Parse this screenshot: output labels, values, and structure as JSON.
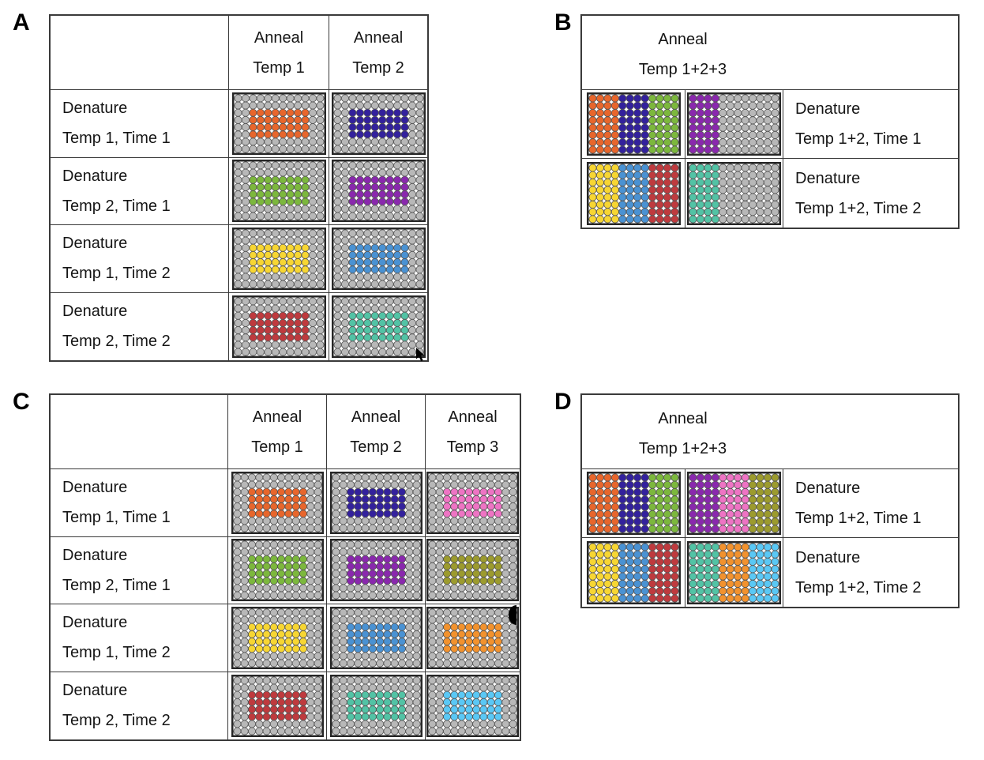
{
  "figure_title": "PCR plate layout diagram: anneal temperature vs denature temperature/time conditions",
  "colors": {
    "gray_well": "#b8b8b8",
    "well_stroke": "#555555",
    "plate_border": "#262626",
    "table_border": "#3a3a3a",
    "text": "#151515",
    "orange": "#e8662c",
    "indigo": "#33219d",
    "green": "#7cb83d",
    "purple": "#8a28ae",
    "yellow": "#f7d633",
    "blue": "#4a92d3",
    "red": "#bf3a3e",
    "teal": "#52c3a5",
    "pink": "#ee74c4",
    "olive": "#9c9b2e",
    "orange2": "#f2922e",
    "sky": "#5ac8f5"
  },
  "plate_grid": {
    "cols": 12,
    "rows": 8,
    "block": {
      "col_start": 2,
      "col_end": 9,
      "row_start": 2,
      "row_end": 5
    },
    "band_width_cols": 4
  },
  "panels": [
    {
      "label": "A",
      "kind": "matrix",
      "col_headers": [
        [
          "Anneal",
          "Temp 1"
        ],
        [
          "Anneal",
          "Temp 2"
        ]
      ],
      "rows": [
        {
          "label": [
            "Denature",
            "Temp 1, Time 1"
          ],
          "plates": [
            {
              "type": "block",
              "color": "orange"
            },
            {
              "type": "block",
              "color": "indigo"
            }
          ]
        },
        {
          "label": [
            "Denature",
            "Temp 2, Time 1"
          ],
          "plates": [
            {
              "type": "block",
              "color": "green"
            },
            {
              "type": "block",
              "color": "purple"
            }
          ]
        },
        {
          "label": [
            "Denature",
            "Temp 1, Time 2"
          ],
          "plates": [
            {
              "type": "block",
              "color": "yellow"
            },
            {
              "type": "block",
              "color": "blue"
            }
          ]
        },
        {
          "label": [
            "Denature",
            "Temp 2, Time 2"
          ],
          "plates": [
            {
              "type": "block",
              "color": "red"
            },
            {
              "type": "block",
              "color": "teal"
            }
          ]
        }
      ]
    },
    {
      "label": "B",
      "kind": "combined",
      "header": [
        "Anneal",
        "Temp 1+2+3"
      ],
      "rows": [
        {
          "plates": [
            {
              "type": "bands",
              "colors": [
                "orange",
                "indigo",
                "green"
              ]
            },
            {
              "type": "bands",
              "colors": [
                "purple",
                null,
                null
              ]
            }
          ],
          "label": [
            "Denature",
            "Temp 1+2, Time 1"
          ]
        },
        {
          "plates": [
            {
              "type": "bands",
              "colors": [
                "yellow",
                "blue",
                "red"
              ]
            },
            {
              "type": "bands",
              "colors": [
                "teal",
                null,
                null
              ]
            }
          ],
          "label": [
            "Denature",
            "Temp 1+2, Time 2"
          ]
        }
      ]
    },
    {
      "label": "C",
      "kind": "matrix",
      "col_headers": [
        [
          "Anneal",
          "Temp 1"
        ],
        [
          "Anneal",
          "Temp 2"
        ],
        [
          "Anneal",
          "Temp 3"
        ]
      ],
      "rows": [
        {
          "label": [
            "Denature",
            "Temp 1, Time 1"
          ],
          "plates": [
            {
              "type": "block",
              "color": "orange"
            },
            {
              "type": "block",
              "color": "indigo"
            },
            {
              "type": "block",
              "color": "pink"
            }
          ]
        },
        {
          "label": [
            "Denature",
            "Temp 2, Time 1"
          ],
          "plates": [
            {
              "type": "block",
              "color": "green"
            },
            {
              "type": "block",
              "color": "purple"
            },
            {
              "type": "block",
              "color": "olive"
            }
          ]
        },
        {
          "label": [
            "Denature",
            "Temp 1, Time 2"
          ],
          "plates": [
            {
              "type": "block",
              "color": "yellow"
            },
            {
              "type": "block",
              "color": "blue"
            },
            {
              "type": "block",
              "color": "orange2"
            }
          ]
        },
        {
          "label": [
            "Denature",
            "Temp 2, Time 2"
          ],
          "plates": [
            {
              "type": "block",
              "color": "red"
            },
            {
              "type": "block",
              "color": "teal"
            },
            {
              "type": "block",
              "color": "sky"
            }
          ]
        }
      ]
    },
    {
      "label": "D",
      "kind": "combined",
      "header": [
        "Anneal",
        "Temp 1+2+3"
      ],
      "rows": [
        {
          "plates": [
            {
              "type": "bands",
              "colors": [
                "orange",
                "indigo",
                "green"
              ]
            },
            {
              "type": "bands",
              "colors": [
                "purple",
                "pink",
                "olive"
              ]
            }
          ],
          "label": [
            "Denature",
            "Temp 1+2, Time 1"
          ]
        },
        {
          "plates": [
            {
              "type": "bands",
              "colors": [
                "yellow",
                "blue",
                "red"
              ]
            },
            {
              "type": "bands",
              "colors": [
                "teal",
                "orange2",
                "sky"
              ]
            }
          ],
          "label": [
            "Denature",
            "Temp 1+2, Time 2"
          ]
        }
      ]
    }
  ],
  "artifacts": {
    "cursor_icon": "mouse-cursor",
    "ink_mark": "black-half-circle"
  }
}
